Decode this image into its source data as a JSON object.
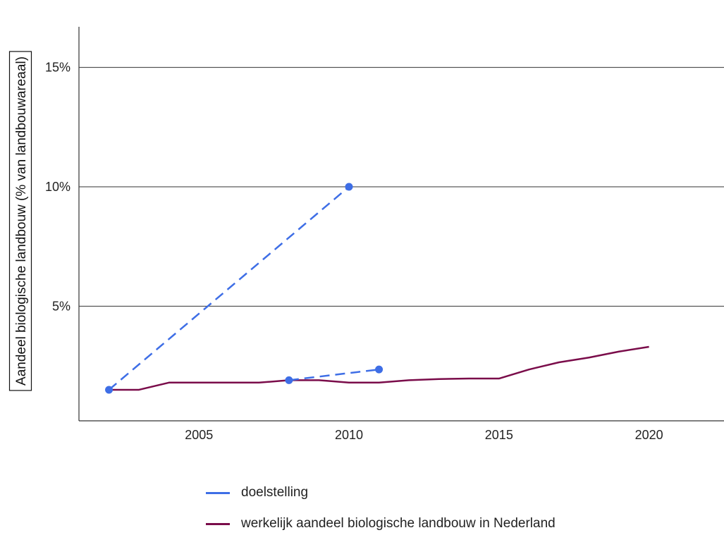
{
  "colors": {
    "target": "#3e6ee6",
    "actual": "#7a0c4a",
    "grid": "#333333",
    "axis": "#333333"
  },
  "chart_data": {
    "type": "line",
    "title": "",
    "xlabel": "",
    "ylabel": "Aandeel biologische landbouw  (% van landbouwareaal)",
    "xlim": [
      2001.0,
      2022.5
    ],
    "ylim": [
      0.2,
      16.7
    ],
    "x_ticks": [
      2005,
      2010,
      2015,
      2020
    ],
    "x_tick_labels": [
      "2005",
      "2010",
      "2015",
      "2020"
    ],
    "y_ticks": [
      5,
      10,
      15
    ],
    "y_tick_labels": [
      "5%",
      "10%",
      "15%"
    ],
    "grid": "horizontal",
    "legend_position": "bottom",
    "series": [
      {
        "name": "doelstelling",
        "color": "#3e6ee6",
        "style": "dashed",
        "segments": [
          [
            {
              "x": 2002,
              "y": 1.5
            },
            {
              "x": 2010,
              "y": 10.0
            }
          ],
          [
            {
              "x": 2008,
              "y": 1.9
            },
            {
              "x": 2011,
              "y": 2.35
            }
          ]
        ]
      },
      {
        "name": "werkelijk aandeel biologische landbouw in Nederland",
        "color": "#7a0c4a",
        "style": "solid",
        "x": [
          2002,
          2003,
          2004,
          2005,
          2006,
          2007,
          2008,
          2009,
          2010,
          2011,
          2012,
          2013,
          2014,
          2015,
          2016,
          2017,
          2018,
          2019,
          2020
        ],
        "y": [
          1.5,
          1.5,
          1.8,
          1.8,
          1.8,
          1.8,
          1.9,
          1.9,
          1.8,
          1.8,
          1.9,
          1.95,
          1.97,
          1.97,
          2.35,
          2.65,
          2.85,
          3.1,
          3.3
        ]
      }
    ]
  },
  "legend": {
    "items": [
      {
        "label": "doelstelling",
        "color": "#3e6ee6"
      },
      {
        "label": "werkelijk aandeel biologische landbouw in Nederland",
        "color": "#7a0c4a"
      }
    ]
  }
}
